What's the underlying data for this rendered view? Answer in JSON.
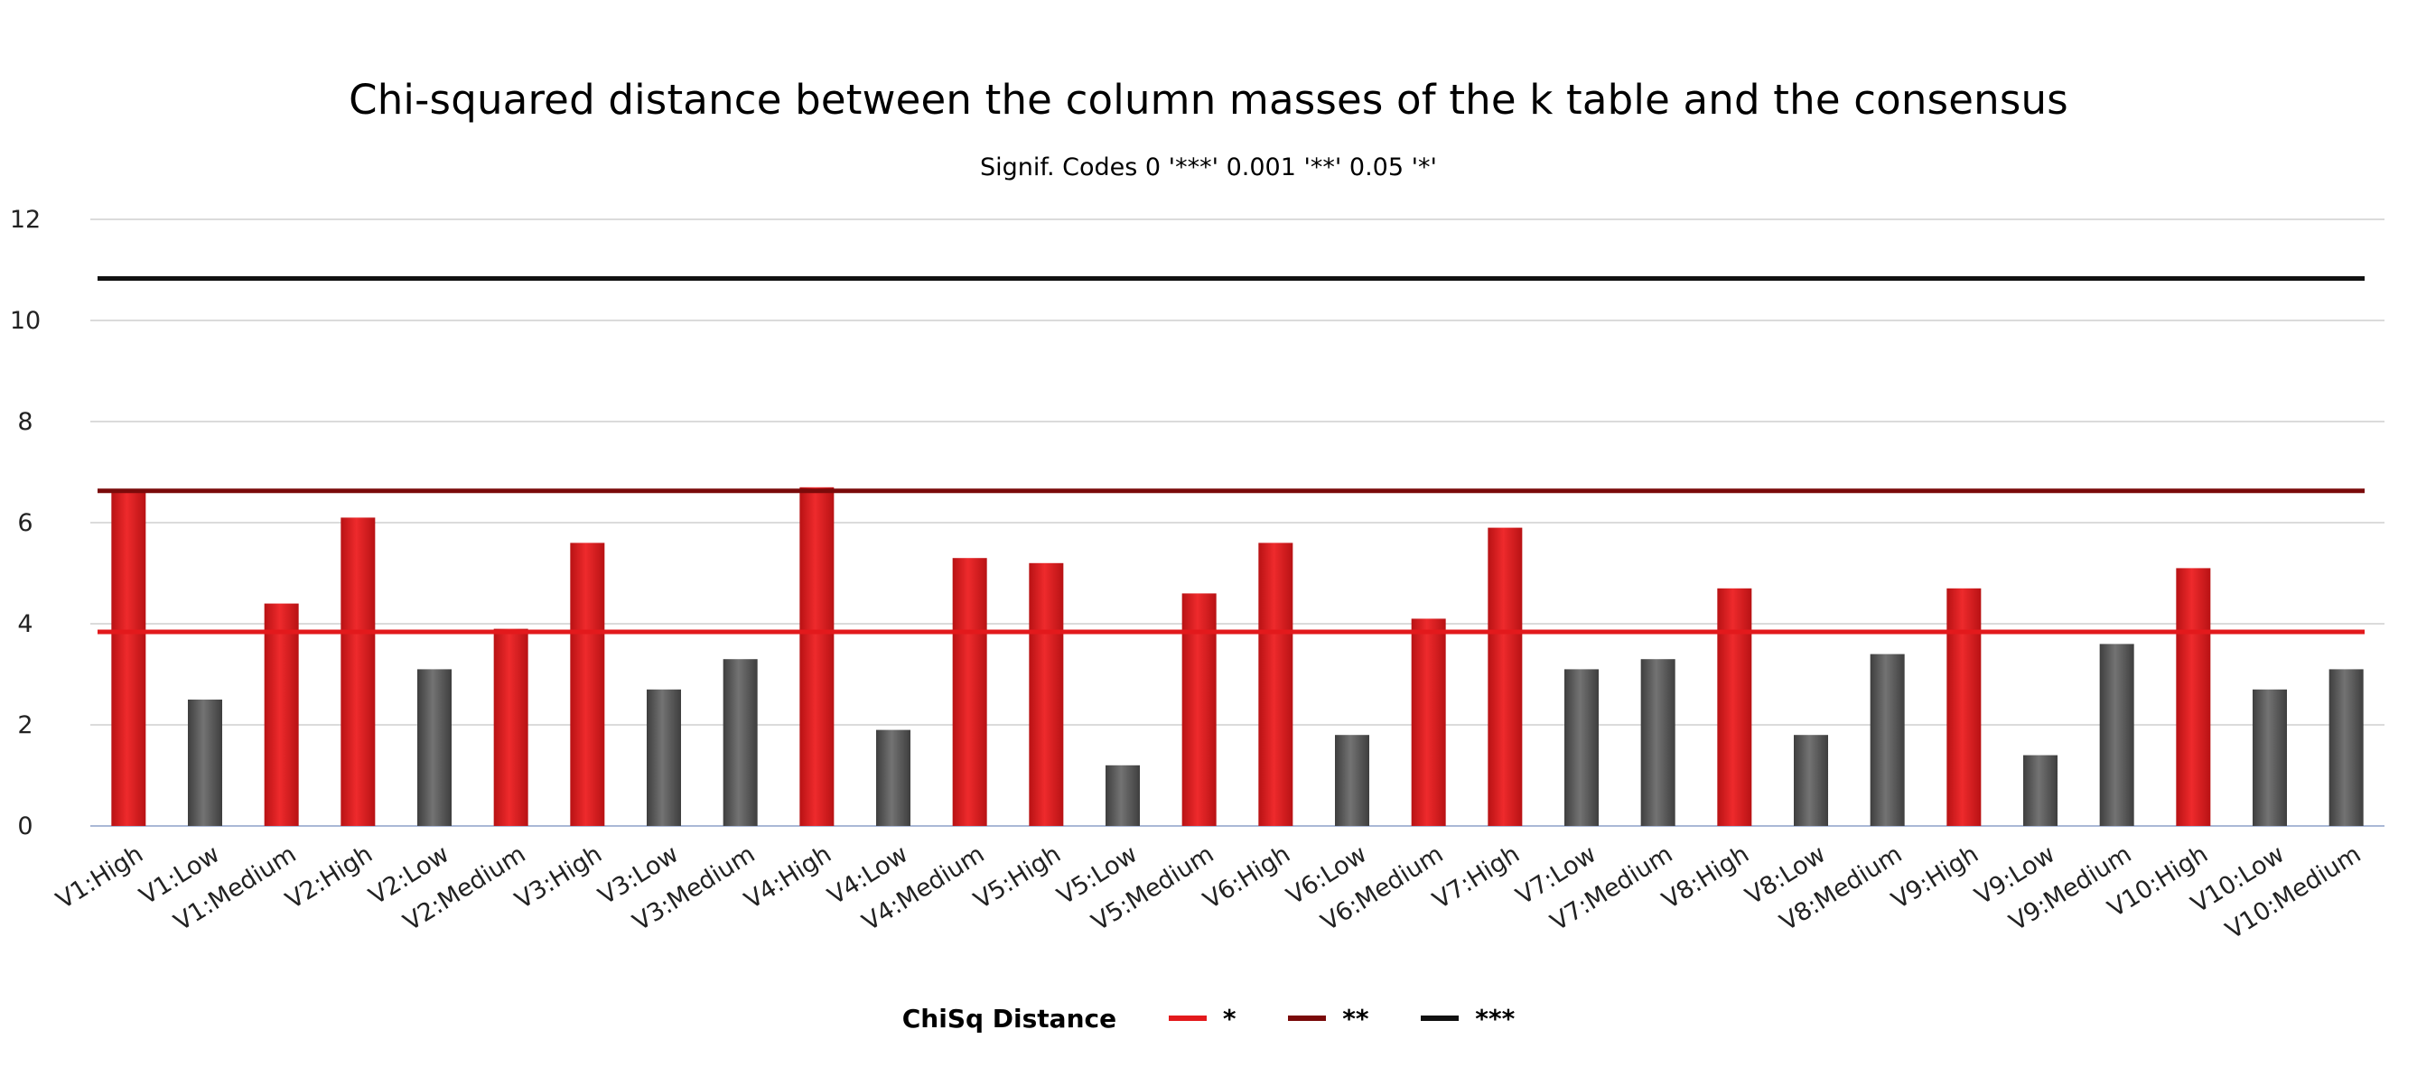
{
  "chart_data": {
    "type": "bar",
    "title": "Chi-squared distance between the column masses of the k table and the consensus",
    "subtitle": "Signif. Codes 0 '***' 0.001 '**' 0.05 '*'",
    "xlabel": "",
    "ylabel": "",
    "ylim": [
      0,
      12
    ],
    "yticks": [
      "0",
      "2",
      "4",
      "6",
      "8",
      "10",
      "12"
    ],
    "grid": true,
    "legend_position": "bottom",
    "categories": [
      "V1:High",
      "V1:Low",
      "V1:Medium",
      "V2:High",
      "V2:Low",
      "V2:Medium",
      "V3:High",
      "V3:Low",
      "V3:Medium",
      "V4:High",
      "V4:Low",
      "V4:Medium",
      "V5:High",
      "V5:Low",
      "V5:Medium",
      "V6:High",
      "V6:Low",
      "V6:Medium",
      "V7:High",
      "V7:Low",
      "V7:Medium",
      "V8:High",
      "V8:Low",
      "V8:Medium",
      "V9:High",
      "V9:Low",
      "V9:Medium",
      "V10:High",
      "V10:Low",
      "V10:Medium"
    ],
    "series": [
      {
        "name": "ChiSq Distance",
        "values": [
          6.6,
          2.5,
          4.4,
          6.1,
          3.1,
          3.9,
          5.6,
          2.7,
          3.3,
          6.7,
          1.9,
          5.3,
          5.2,
          1.2,
          4.6,
          5.6,
          1.8,
          4.1,
          5.9,
          3.1,
          3.3,
          4.7,
          1.8,
          3.4,
          4.7,
          1.4,
          3.6,
          5.1,
          2.7,
          3.1
        ],
        "significant_color": "#e3191c",
        "nonsignificant_color": "#5e5e5e"
      }
    ],
    "thresholds": [
      {
        "name": "*",
        "value": 3.84,
        "color": "#e3191c"
      },
      {
        "name": "**",
        "value": 6.63,
        "color": "#7a0a0a"
      },
      {
        "name": "***",
        "value": 10.83,
        "color": "#111111"
      }
    ]
  }
}
